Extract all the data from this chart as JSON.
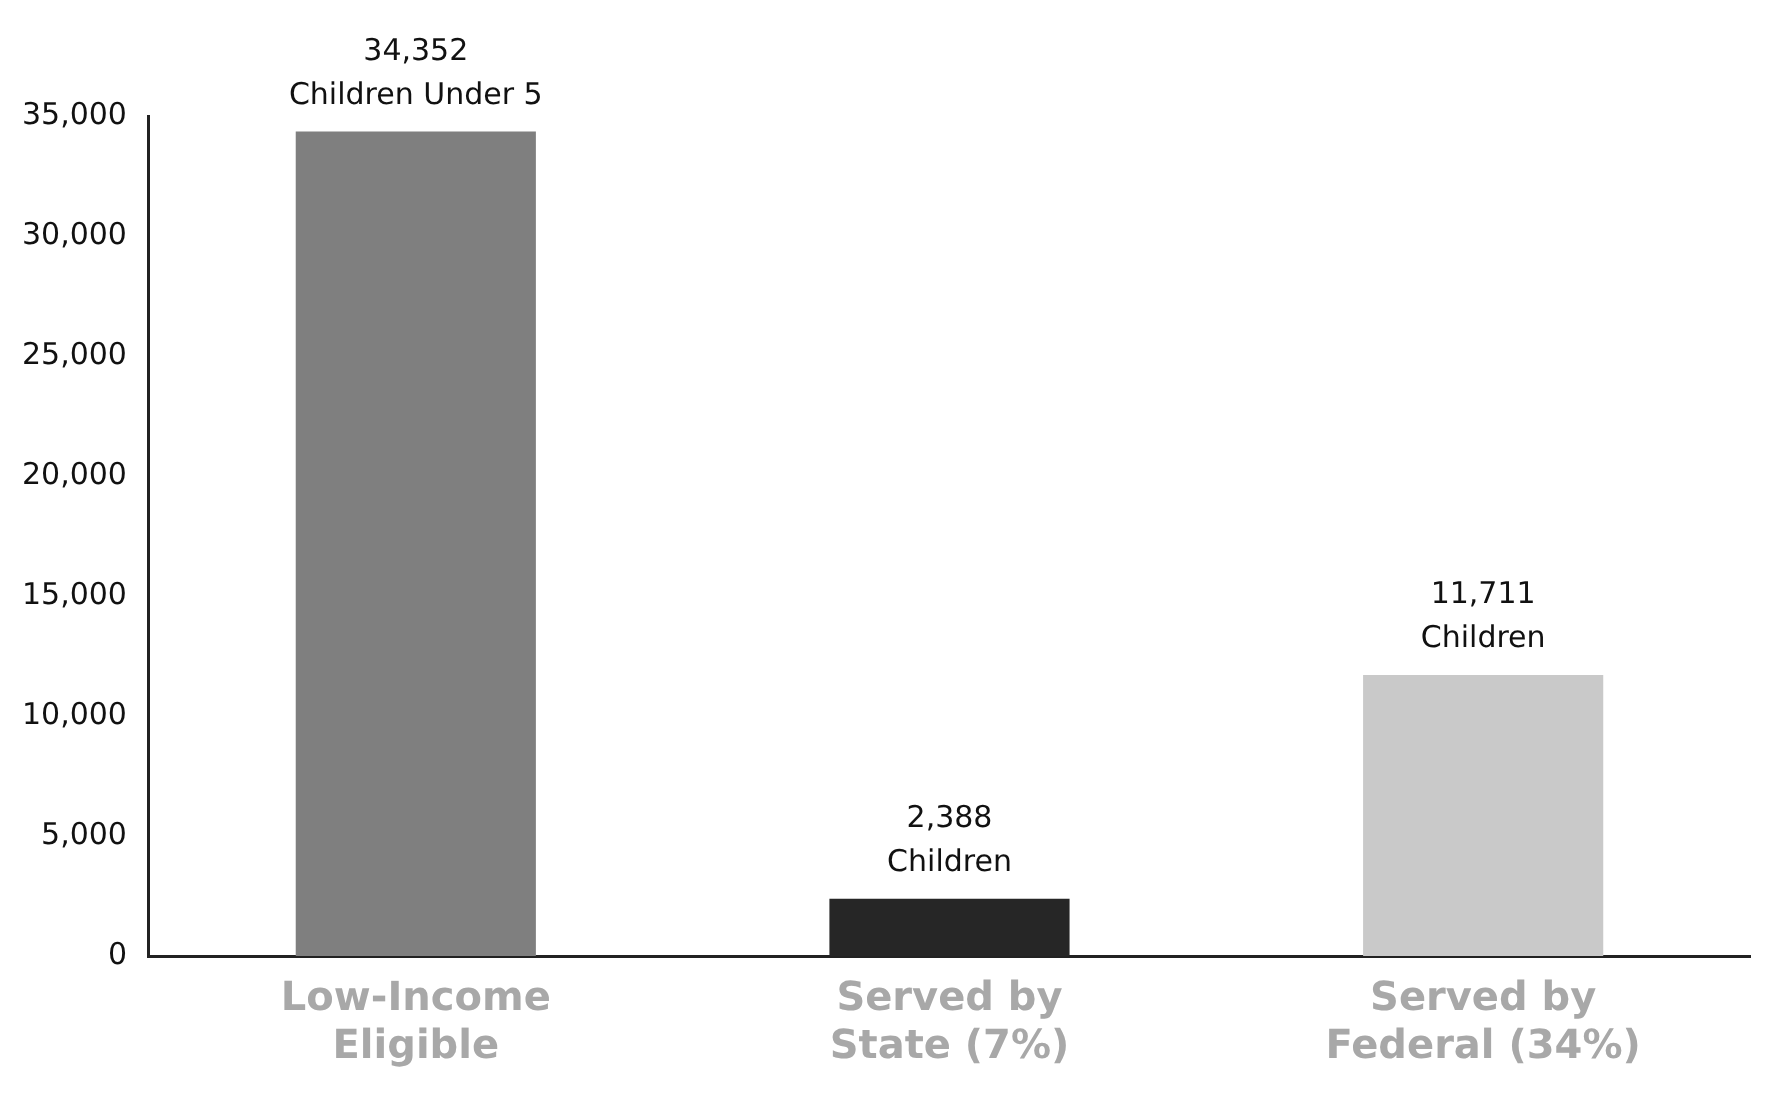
{
  "chart_data": {
    "type": "bar",
    "categories": [
      "Low-Income Eligible",
      "Served by State (7%)",
      "Served by Federal (34%)"
    ],
    "values": [
      34352,
      2388,
      11711
    ],
    "colors": [
      "#7f7f7f",
      "#262626",
      "#c9c9c9"
    ],
    "value_labels": [
      "34,352 Children Under 5",
      "2,388 Children",
      "11,711 Children"
    ],
    "ylim": [
      0,
      35000
    ],
    "yticks": [
      {
        "value": 0,
        "label": "0"
      },
      {
        "value": 5000,
        "label": "5,000"
      },
      {
        "value": 10000,
        "label": "10,000"
      },
      {
        "value": 15000,
        "label": "15,000"
      },
      {
        "value": 20000,
        "label": "20,000"
      },
      {
        "value": 25000,
        "label": "25,000"
      },
      {
        "value": 30000,
        "label": "30,000"
      },
      {
        "value": 35000,
        "label": "35,000"
      }
    ],
    "grid": false,
    "legend": false
  }
}
